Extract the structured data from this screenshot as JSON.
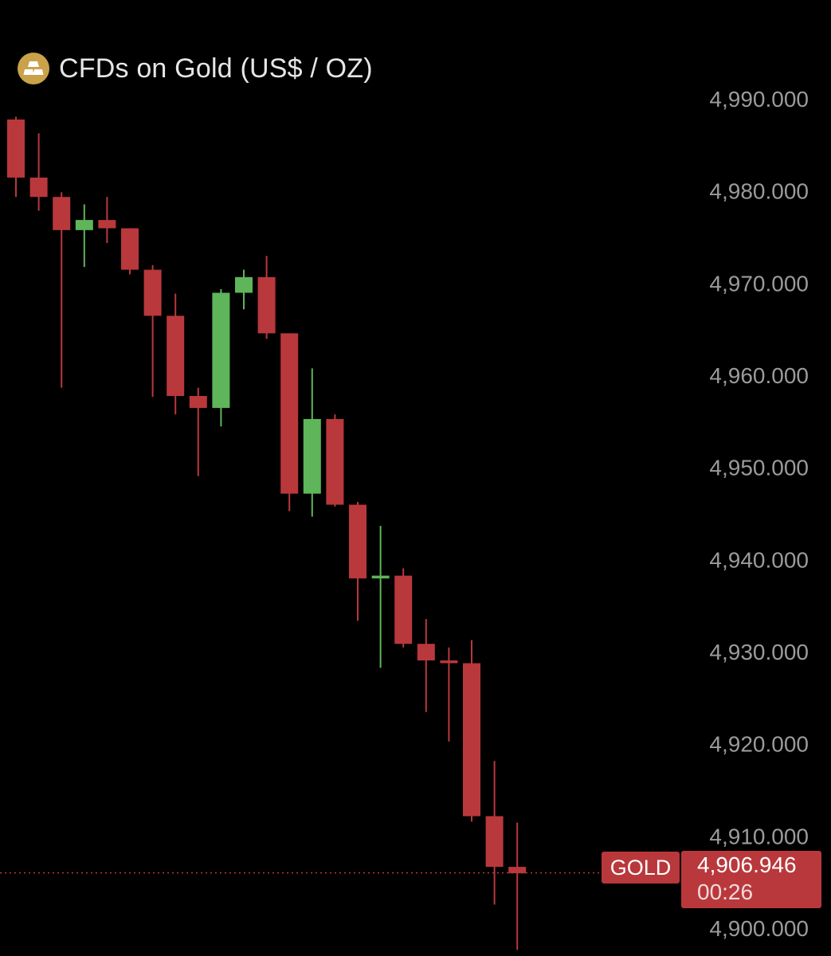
{
  "header": {
    "title": "CFDs on Gold (US$ / OZ)",
    "icon": "gold-bars-icon"
  },
  "price_badge": {
    "symbol": "GOLD",
    "price": "4,906.946",
    "countdown": "00:26",
    "color": "#b9383c"
  },
  "colors": {
    "up": "#5fb55a",
    "down": "#b9383c",
    "background": "#000000",
    "axis_text": "#9b9b9b"
  },
  "chart_data": {
    "type": "candlestick",
    "title": "CFDs on Gold (US$ / OZ)",
    "ylim": [
      4898,
      4995
    ],
    "y_ticks": [
      4990,
      4980,
      4970,
      4960,
      4950,
      4940,
      4930,
      4920,
      4910,
      4900
    ],
    "y_tick_labels": [
      "4,990.000",
      "4,980.000",
      "4,970.000",
      "4,960.000",
      "4,950.000",
      "4,940.000",
      "4,930.000",
      "4,920.000",
      "4,910.000",
      "4,900.000"
    ],
    "last_price": 4906.946,
    "grid": false,
    "candles": [
      {
        "o": 4988.7,
        "h": 4989.0,
        "l": 4980.3,
        "c": 4982.4
      },
      {
        "o": 4982.4,
        "h": 4987.2,
        "l": 4978.8,
        "c": 4980.3
      },
      {
        "o": 4980.3,
        "h": 4980.8,
        "l": 4959.6,
        "c": 4976.7
      },
      {
        "o": 4976.7,
        "h": 4979.5,
        "l": 4972.7,
        "c": 4977.8
      },
      {
        "o": 4977.8,
        "h": 4980.3,
        "l": 4975.3,
        "c": 4976.9
      },
      {
        "o": 4976.9,
        "h": 4976.9,
        "l": 4971.9,
        "c": 4972.4
      },
      {
        "o": 4972.4,
        "h": 4972.9,
        "l": 4958.6,
        "c": 4967.4
      },
      {
        "o": 4967.4,
        "h": 4969.8,
        "l": 4956.7,
        "c": 4958.7
      },
      {
        "o": 4958.7,
        "h": 4959.6,
        "l": 4950.0,
        "c": 4957.4
      },
      {
        "o": 4957.4,
        "h": 4970.3,
        "l": 4955.4,
        "c": 4969.9
      },
      {
        "o": 4969.9,
        "h": 4972.4,
        "l": 4968.1,
        "c": 4971.6
      },
      {
        "o": 4971.6,
        "h": 4973.9,
        "l": 4964.9,
        "c": 4965.5
      },
      {
        "o": 4965.5,
        "h": 4965.5,
        "l": 4946.2,
        "c": 4948.1
      },
      {
        "o": 4948.1,
        "h": 4961.7,
        "l": 4945.6,
        "c": 4956.2
      },
      {
        "o": 4956.2,
        "h": 4956.7,
        "l": 4946.7,
        "c": 4946.9
      },
      {
        "o": 4946.9,
        "h": 4947.2,
        "l": 4934.3,
        "c": 4938.9
      },
      {
        "o": 4938.9,
        "h": 4944.6,
        "l": 4929.2,
        "c": 4939.2
      },
      {
        "o": 4939.2,
        "h": 4940.0,
        "l": 4931.4,
        "c": 4931.8
      },
      {
        "o": 4931.8,
        "h": 4934.5,
        "l": 4924.4,
        "c": 4930.0
      },
      {
        "o": 4930.0,
        "h": 4931.4,
        "l": 4921.2,
        "c": 4929.7
      },
      {
        "o": 4929.7,
        "h": 4932.2,
        "l": 4912.5,
        "c": 4913.1
      },
      {
        "o": 4913.1,
        "h": 4919.1,
        "l": 4903.5,
        "c": 4907.6
      },
      {
        "o": 4907.6,
        "h": 4912.4,
        "l": 4898.6,
        "c": 4906.9
      }
    ]
  }
}
